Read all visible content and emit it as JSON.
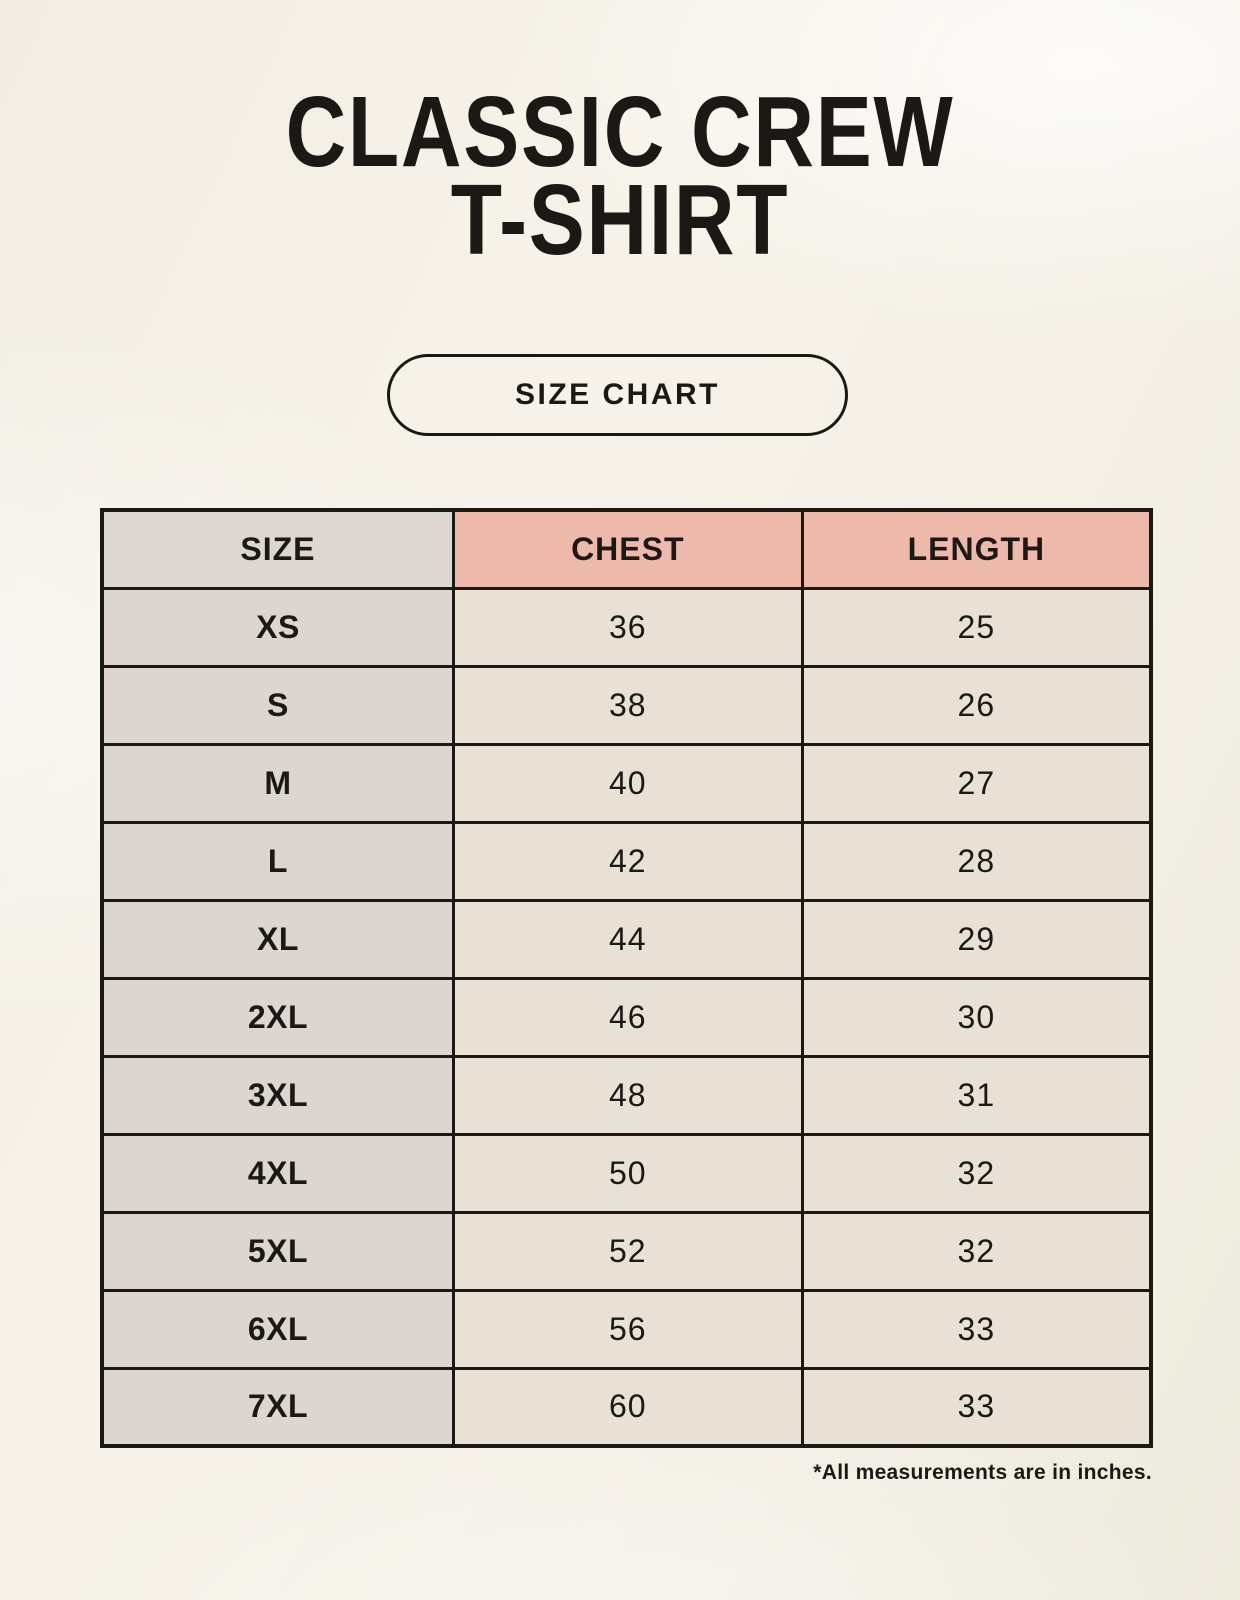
{
  "header": {
    "title_line1": "CLASSIC CREW",
    "title_line2": "T-SHIRT",
    "badge_label": "SIZE CHART"
  },
  "table": {
    "headers": [
      "SIZE",
      "CHEST",
      "LENGTH"
    ],
    "rows": [
      {
        "size": "XS",
        "chest": "36",
        "length": "25"
      },
      {
        "size": "S",
        "chest": "38",
        "length": "26"
      },
      {
        "size": "M",
        "chest": "40",
        "length": "27"
      },
      {
        "size": "L",
        "chest": "42",
        "length": "28"
      },
      {
        "size": "XL",
        "chest": "44",
        "length": "29"
      },
      {
        "size": "2XL",
        "chest": "46",
        "length": "30"
      },
      {
        "size": "3XL",
        "chest": "48",
        "length": "31"
      },
      {
        "size": "4XL",
        "chest": "50",
        "length": "32"
      },
      {
        "size": "5XL",
        "chest": "52",
        "length": "32"
      },
      {
        "size": "6XL",
        "chest": "56",
        "length": "33"
      },
      {
        "size": "7XL",
        "chest": "60",
        "length": "33"
      }
    ]
  },
  "footer": {
    "note": "*All measurements are in inches."
  },
  "colors": {
    "background": "#f5f1e8",
    "ink": "#1b1916",
    "header_size_bg": "#ddd6d1",
    "header_measure_bg": "#edb9aa",
    "body_size_bg": "#dcd5d0",
    "body_value_bg": "#e9e1d6",
    "border": "#1b1916"
  },
  "chart_data": {
    "type": "table",
    "title": "CLASSIC CREW T-SHIRT",
    "subtitle": "SIZE CHART",
    "columns": [
      "SIZE",
      "CHEST",
      "LENGTH"
    ],
    "rows": [
      [
        "XS",
        36,
        25
      ],
      [
        "S",
        38,
        26
      ],
      [
        "M",
        40,
        27
      ],
      [
        "L",
        42,
        28
      ],
      [
        "XL",
        44,
        29
      ],
      [
        "2XL",
        46,
        30
      ],
      [
        "3XL",
        48,
        31
      ],
      [
        "4XL",
        50,
        32
      ],
      [
        "5XL",
        52,
        32
      ],
      [
        "6XL",
        56,
        33
      ],
      [
        "7XL",
        60,
        33
      ]
    ],
    "note": "*All measurements are in inches.",
    "legend_position": "none",
    "grid": "full-borders"
  }
}
